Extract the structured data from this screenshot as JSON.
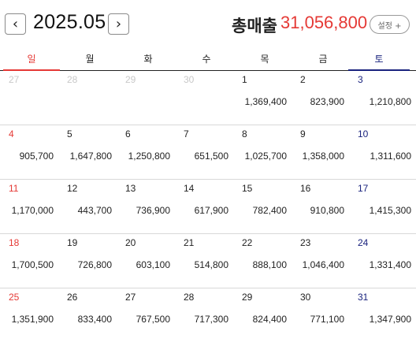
{
  "header": {
    "month": "2025.05",
    "prev_icon": "‹",
    "next_icon": "›",
    "total_label": "총매출",
    "total_value": "31,056,800",
    "settings_label": "설정 +"
  },
  "colors": {
    "sunday": "#e53935",
    "saturday": "#1a237e",
    "total": "#e53935"
  },
  "weekdays": [
    "일",
    "월",
    "화",
    "수",
    "목",
    "금",
    "토"
  ],
  "weeks": [
    [
      {
        "day": "27",
        "amount": ""
      },
      {
        "day": "28",
        "amount": ""
      },
      {
        "day": "29",
        "amount": ""
      },
      {
        "day": "30",
        "amount": ""
      },
      {
        "day": "1",
        "amount": "1,369,400"
      },
      {
        "day": "2",
        "amount": "823,900"
      },
      {
        "day": "3",
        "amount": "1,210,800"
      }
    ],
    [
      {
        "day": "4",
        "amount": "905,700"
      },
      {
        "day": "5",
        "amount": "1,647,800"
      },
      {
        "day": "6",
        "amount": "1,250,800"
      },
      {
        "day": "7",
        "amount": "651,500"
      },
      {
        "day": "8",
        "amount": "1,025,700"
      },
      {
        "day": "9",
        "amount": "1,358,000"
      },
      {
        "day": "10",
        "amount": "1,311,600"
      }
    ],
    [
      {
        "day": "11",
        "amount": "1,170,000"
      },
      {
        "day": "12",
        "amount": "443,700"
      },
      {
        "day": "13",
        "amount": "736,900"
      },
      {
        "day": "14",
        "amount": "617,900"
      },
      {
        "day": "15",
        "amount": "782,400"
      },
      {
        "day": "16",
        "amount": "910,800"
      },
      {
        "day": "17",
        "amount": "1,415,300"
      }
    ],
    [
      {
        "day": "18",
        "amount": "1,700,500"
      },
      {
        "day": "19",
        "amount": "726,800"
      },
      {
        "day": "20",
        "amount": "603,100"
      },
      {
        "day": "21",
        "amount": "514,800"
      },
      {
        "day": "22",
        "amount": "888,100"
      },
      {
        "day": "23",
        "amount": "1,046,400"
      },
      {
        "day": "24",
        "amount": "1,331,400"
      }
    ],
    [
      {
        "day": "25",
        "amount": "1,351,900"
      },
      {
        "day": "26",
        "amount": "833,400"
      },
      {
        "day": "27",
        "amount": "767,500"
      },
      {
        "day": "28",
        "amount": "717,300"
      },
      {
        "day": "29",
        "amount": "824,400"
      },
      {
        "day": "30",
        "amount": "771,100"
      },
      {
        "day": "31",
        "amount": "1,347,900"
      }
    ]
  ]
}
